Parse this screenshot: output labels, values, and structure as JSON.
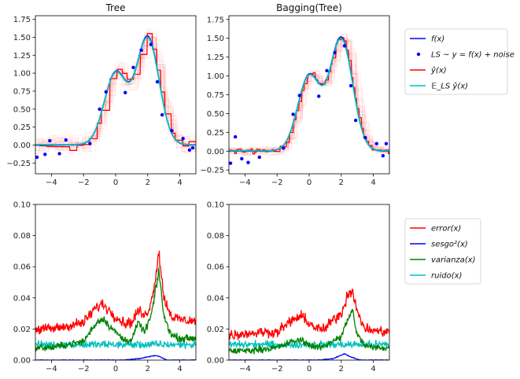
{
  "chart_data": [
    {
      "panel": "top-left",
      "type": "line",
      "title": "Tree",
      "xlabel": "",
      "ylabel": "",
      "xlim": [
        -5,
        5
      ],
      "ylim": [
        -0.4,
        1.8
      ],
      "xticks": [
        -4,
        -2,
        0,
        2,
        4
      ],
      "yticks": [
        -0.25,
        0.0,
        0.25,
        0.5,
        0.75,
        1.0,
        1.25,
        1.5,
        1.75
      ],
      "ytick_labels": [
        "−0.25",
        "0.00",
        "0.25",
        "0.50",
        "0.75",
        "1.00",
        "1.25",
        "1.50",
        "1.75"
      ],
      "xtick_labels": [
        "−4",
        "−2",
        "0",
        "2",
        "4"
      ],
      "grid": false,
      "series": [
        {
          "name": "f(x)",
          "color": "#0000ff",
          "kind": "line"
        },
        {
          "name": "LS ~ y = f(x) + noise",
          "color": "#0000ff",
          "kind": "points",
          "x": [
            -4.9,
            -4.4,
            -4.1,
            -3.5,
            -3.1,
            -1.6,
            -1.0,
            -0.6,
            0.6,
            1.1,
            1.6,
            2.2,
            2.6,
            2.9,
            3.5,
            4.2,
            4.6,
            4.8
          ],
          "y": [
            -0.17,
            -0.13,
            0.06,
            -0.12,
            0.07,
            0.02,
            0.5,
            0.74,
            0.73,
            1.08,
            1.32,
            1.4,
            0.88,
            0.42,
            0.2,
            0.09,
            -0.07,
            -0.04
          ]
        },
        {
          "name": "ŷ(x)",
          "color": "#ff0000",
          "kind": "step"
        },
        {
          "name": "E_LS ŷ(x)",
          "color": "#00bfbf",
          "kind": "line"
        }
      ]
    },
    {
      "panel": "top-right",
      "type": "line",
      "title": "Bagging(Tree)",
      "xlabel": "",
      "ylabel": "",
      "xlim": [
        -5,
        5
      ],
      "ylim": [
        -0.3,
        1.8
      ],
      "xticks": [
        -4,
        -2,
        0,
        2,
        4
      ],
      "yticks": [
        -0.25,
        0.0,
        0.25,
        0.5,
        0.75,
        1.0,
        1.25,
        1.5,
        1.75
      ],
      "ytick_labels": [
        "−0.25",
        "0.00",
        "0.25",
        "0.50",
        "0.75",
        "1.00",
        "1.25",
        "1.50",
        "1.75"
      ],
      "xtick_labels": [
        "−4",
        "−2",
        "0",
        "2",
        "4"
      ],
      "grid": false,
      "series": [
        {
          "name": "f(x)",
          "color": "#0000ff",
          "kind": "line"
        },
        {
          "name": "LS ~ y = f(x) + noise",
          "color": "#0000ff",
          "kind": "points",
          "x": [
            -4.9,
            -4.6,
            -4.2,
            -3.8,
            -3.1,
            -1.6,
            -1.0,
            -0.6,
            0.6,
            1.1,
            1.6,
            2.2,
            2.6,
            2.9,
            3.5,
            4.2,
            4.6,
            4.8
          ],
          "y": [
            -0.16,
            0.19,
            -0.1,
            -0.15,
            -0.08,
            0.04,
            0.49,
            0.74,
            0.73,
            1.07,
            1.31,
            1.4,
            0.87,
            0.41,
            0.18,
            0.1,
            -0.06,
            0.1
          ]
        },
        {
          "name": "ŷ(x)",
          "color": "#ff0000",
          "kind": "step"
        },
        {
          "name": "E_LS ŷ(x)",
          "color": "#00bfbf",
          "kind": "line"
        }
      ]
    },
    {
      "panel": "bottom-left",
      "type": "line",
      "title": "",
      "xlabel": "",
      "ylabel": "",
      "xlim": [
        -5,
        5
      ],
      "ylim": [
        0,
        0.1
      ],
      "xticks": [
        -4,
        -2,
        0,
        2,
        4
      ],
      "yticks": [
        0.0,
        0.02,
        0.04,
        0.06,
        0.08,
        0.1
      ],
      "ytick_labels": [
        "0.00",
        "0.02",
        "0.04",
        "0.06",
        "0.08",
        "0.10"
      ],
      "xtick_labels": [
        "−4",
        "−2",
        "0",
        "2",
        "4"
      ],
      "grid": false,
      "series": [
        {
          "name": "error(x)",
          "color": "#ff0000",
          "x": [
            -5,
            -4,
            -3,
            -2,
            -1.2,
            -0.8,
            -0.2,
            0.5,
            1.0,
            1.4,
            1.8,
            2.2,
            2.5,
            2.7,
            3.0,
            3.5,
            4.0,
            5.0
          ],
          "y": [
            0.02,
            0.02,
            0.022,
            0.024,
            0.034,
            0.036,
            0.03,
            0.024,
            0.024,
            0.032,
            0.028,
            0.036,
            0.055,
            0.07,
            0.04,
            0.028,
            0.026,
            0.025
          ]
        },
        {
          "name": "sesgo²(x)",
          "color": "#0000ff",
          "x": [
            -5,
            -3,
            -1,
            0.5,
            1.5,
            2.5,
            2.8,
            3.2,
            4,
            5
          ],
          "y": [
            0.0,
            0.0,
            0.0,
            0.0,
            0.001,
            0.003,
            0.002,
            0.0,
            0.0,
            0.0
          ]
        },
        {
          "name": "varianza(x)",
          "color": "#008000",
          "x": [
            -5,
            -4,
            -3,
            -2,
            -1.2,
            -0.8,
            -0.2,
            0.5,
            1.0,
            1.4,
            1.8,
            2.2,
            2.5,
            2.7,
            3.0,
            3.5,
            4.0,
            5.0
          ],
          "y": [
            0.008,
            0.008,
            0.01,
            0.012,
            0.024,
            0.027,
            0.02,
            0.013,
            0.013,
            0.024,
            0.018,
            0.028,
            0.045,
            0.058,
            0.028,
            0.016,
            0.014,
            0.014
          ]
        },
        {
          "name": "ruido(x)",
          "color": "#00bfbf",
          "x": [
            -5,
            -2.5,
            0,
            2.5,
            5
          ],
          "y": [
            0.01,
            0.01,
            0.01,
            0.01,
            0.01
          ]
        }
      ]
    },
    {
      "panel": "bottom-right",
      "type": "line",
      "title": "",
      "xlabel": "",
      "ylabel": "",
      "xlim": [
        -5,
        5
      ],
      "ylim": [
        0,
        0.1
      ],
      "xticks": [
        -4,
        -2,
        0,
        2,
        4
      ],
      "yticks": [
        0.0,
        0.02,
        0.04,
        0.06,
        0.08,
        0.1
      ],
      "ytick_labels": [
        "0.00",
        "0.02",
        "0.04",
        "0.06",
        "0.08",
        "0.10"
      ],
      "xtick_labels": [
        "−4",
        "−2",
        "0",
        "2",
        "4"
      ],
      "grid": false,
      "series": [
        {
          "name": "error(x)",
          "color": "#ff0000",
          "x": [
            -5,
            -4,
            -3,
            -2,
            -1.0,
            -0.5,
            0.0,
            0.5,
            1.0,
            1.5,
            2.0,
            2.4,
            2.7,
            3.0,
            3.5,
            4.0,
            5.0
          ],
          "y": [
            0.016,
            0.017,
            0.018,
            0.018,
            0.026,
            0.028,
            0.024,
            0.02,
            0.02,
            0.026,
            0.03,
            0.042,
            0.046,
            0.03,
            0.02,
            0.019,
            0.018
          ]
        },
        {
          "name": "sesgo²(x)",
          "color": "#0000ff",
          "x": [
            -5,
            -3,
            -1,
            0.5,
            1.5,
            2.2,
            2.6,
            3.2,
            4,
            5
          ],
          "y": [
            0.0,
            0.0,
            0.0,
            0.0,
            0.001,
            0.004,
            0.002,
            0.0,
            0.0,
            0.0
          ]
        },
        {
          "name": "varianza(x)",
          "color": "#008000",
          "x": [
            -5,
            -4,
            -3,
            -2,
            -1.0,
            -0.5,
            0.0,
            0.5,
            1.0,
            1.5,
            2.0,
            2.4,
            2.7,
            3.0,
            3.5,
            4.0,
            5.0
          ],
          "y": [
            0.006,
            0.006,
            0.007,
            0.008,
            0.012,
            0.013,
            0.01,
            0.008,
            0.009,
            0.013,
            0.015,
            0.026,
            0.032,
            0.016,
            0.009,
            0.008,
            0.008
          ]
        },
        {
          "name": "ruido(x)",
          "color": "#00bfbf",
          "x": [
            -5,
            -2.5,
            0,
            2.5,
            5
          ],
          "y": [
            0.01,
            0.01,
            0.01,
            0.01,
            0.01
          ]
        }
      ]
    }
  ],
  "legends": {
    "top": {
      "placement": "right of top row",
      "entries": [
        {
          "label": "f(x)",
          "color": "#0000ff",
          "kind": "line"
        },
        {
          "label": "LS ~ y = f(x) + noise",
          "color": "#0000ff",
          "kind": "point"
        },
        {
          "label": "ŷ(x)",
          "color": "#ff0000",
          "kind": "line"
        },
        {
          "label": "𝔼_LS ŷ(x)",
          "color": "#00bfbf",
          "kind": "line"
        }
      ]
    },
    "bottom": {
      "placement": "right of bottom row",
      "entries": [
        {
          "label": "error(x)",
          "color": "#ff0000",
          "kind": "line"
        },
        {
          "label": "sesgo²(x)",
          "color": "#0000ff",
          "kind": "line"
        },
        {
          "label": "varianza(x)",
          "color": "#008000",
          "kind": "line"
        },
        {
          "label": "ruido(x)",
          "color": "#00bfbf",
          "kind": "line"
        }
      ]
    }
  }
}
